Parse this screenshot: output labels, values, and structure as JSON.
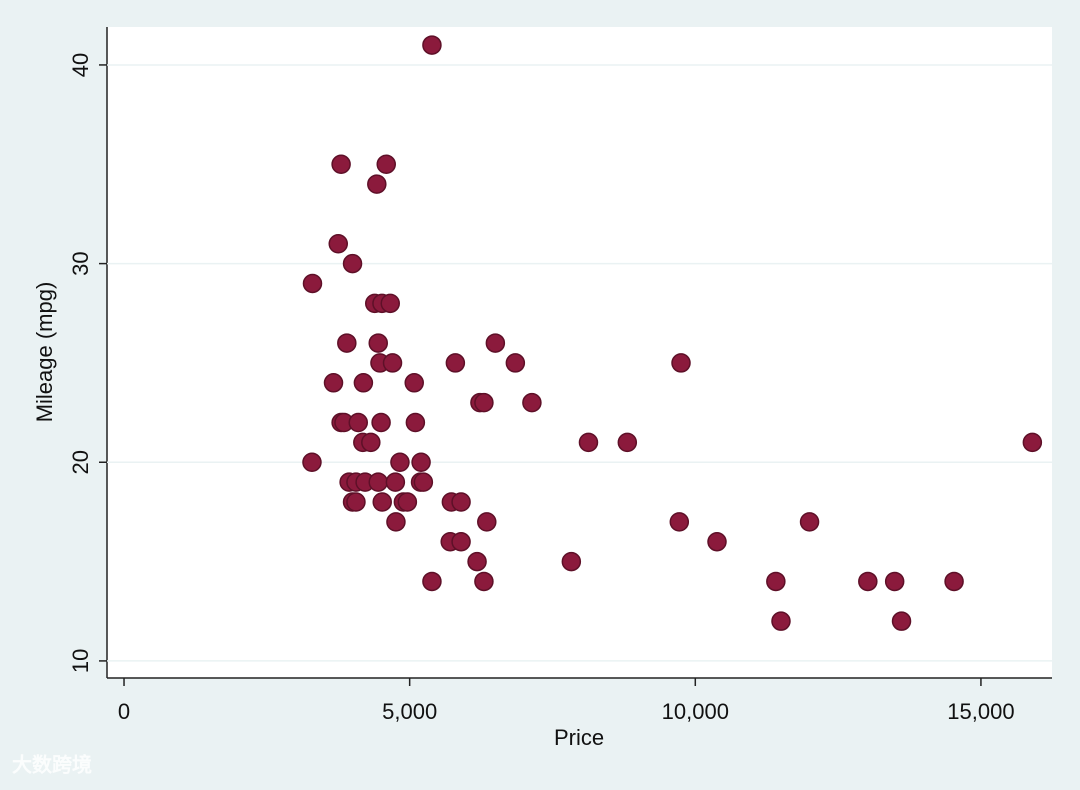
{
  "chart_data": {
    "type": "scatter",
    "x_label": "Price",
    "y_label": "Mileage (mpg)",
    "xlim": [
      -298,
      16244
    ],
    "ylim": [
      9.14,
      41.91
    ],
    "xticks": [
      0,
      {
        "value": 5000,
        "label": "5,000"
      },
      {
        "value": 10000,
        "label": "10,000"
      },
      {
        "value": 15000,
        "label": "15,000"
      }
    ],
    "yticks": [
      10,
      20,
      30,
      40
    ],
    "grid": true,
    "series": [
      {
        "color": "#8b1a3c",
        "x": [
          5390,
          3800,
          4590,
          4425,
          3750,
          4000,
          3299,
          4389,
          4515,
          4660,
          3900,
          4450,
          6500,
          4480,
          4700,
          5800,
          6850,
          9750,
          3667,
          4190,
          5080,
          6230,
          6300,
          7140,
          3800,
          3850,
          4100,
          4500,
          5100,
          4180,
          4320,
          8130,
          8810,
          15900,
          3290,
          4830,
          5200,
          3940,
          4060,
          4220,
          4450,
          4750,
          5190,
          5240,
          4000,
          4060,
          4520,
          4890,
          4960,
          5730,
          5900,
          4760,
          6350,
          9720,
          12000,
          5710,
          5900,
          10380,
          6180,
          7830,
          5390,
          6300,
          11410,
          13020,
          13490,
          14530,
          11500,
          13610
        ],
        "values": [
          41,
          35,
          35,
          34,
          31,
          30,
          29,
          28,
          28,
          28,
          26,
          26,
          26,
          25,
          25,
          25,
          25,
          25,
          24,
          24,
          24,
          23,
          23,
          23,
          22,
          22,
          22,
          22,
          22,
          21,
          21,
          21,
          21,
          21,
          20,
          20,
          20,
          19,
          19,
          19,
          19,
          19,
          19,
          19,
          18,
          18,
          18,
          18,
          18,
          18,
          18,
          17,
          17,
          17,
          17,
          16,
          16,
          16,
          15,
          15,
          14,
          14,
          14,
          14,
          14,
          14,
          12,
          12
        ]
      }
    ]
  },
  "watermark": "大数跨境"
}
